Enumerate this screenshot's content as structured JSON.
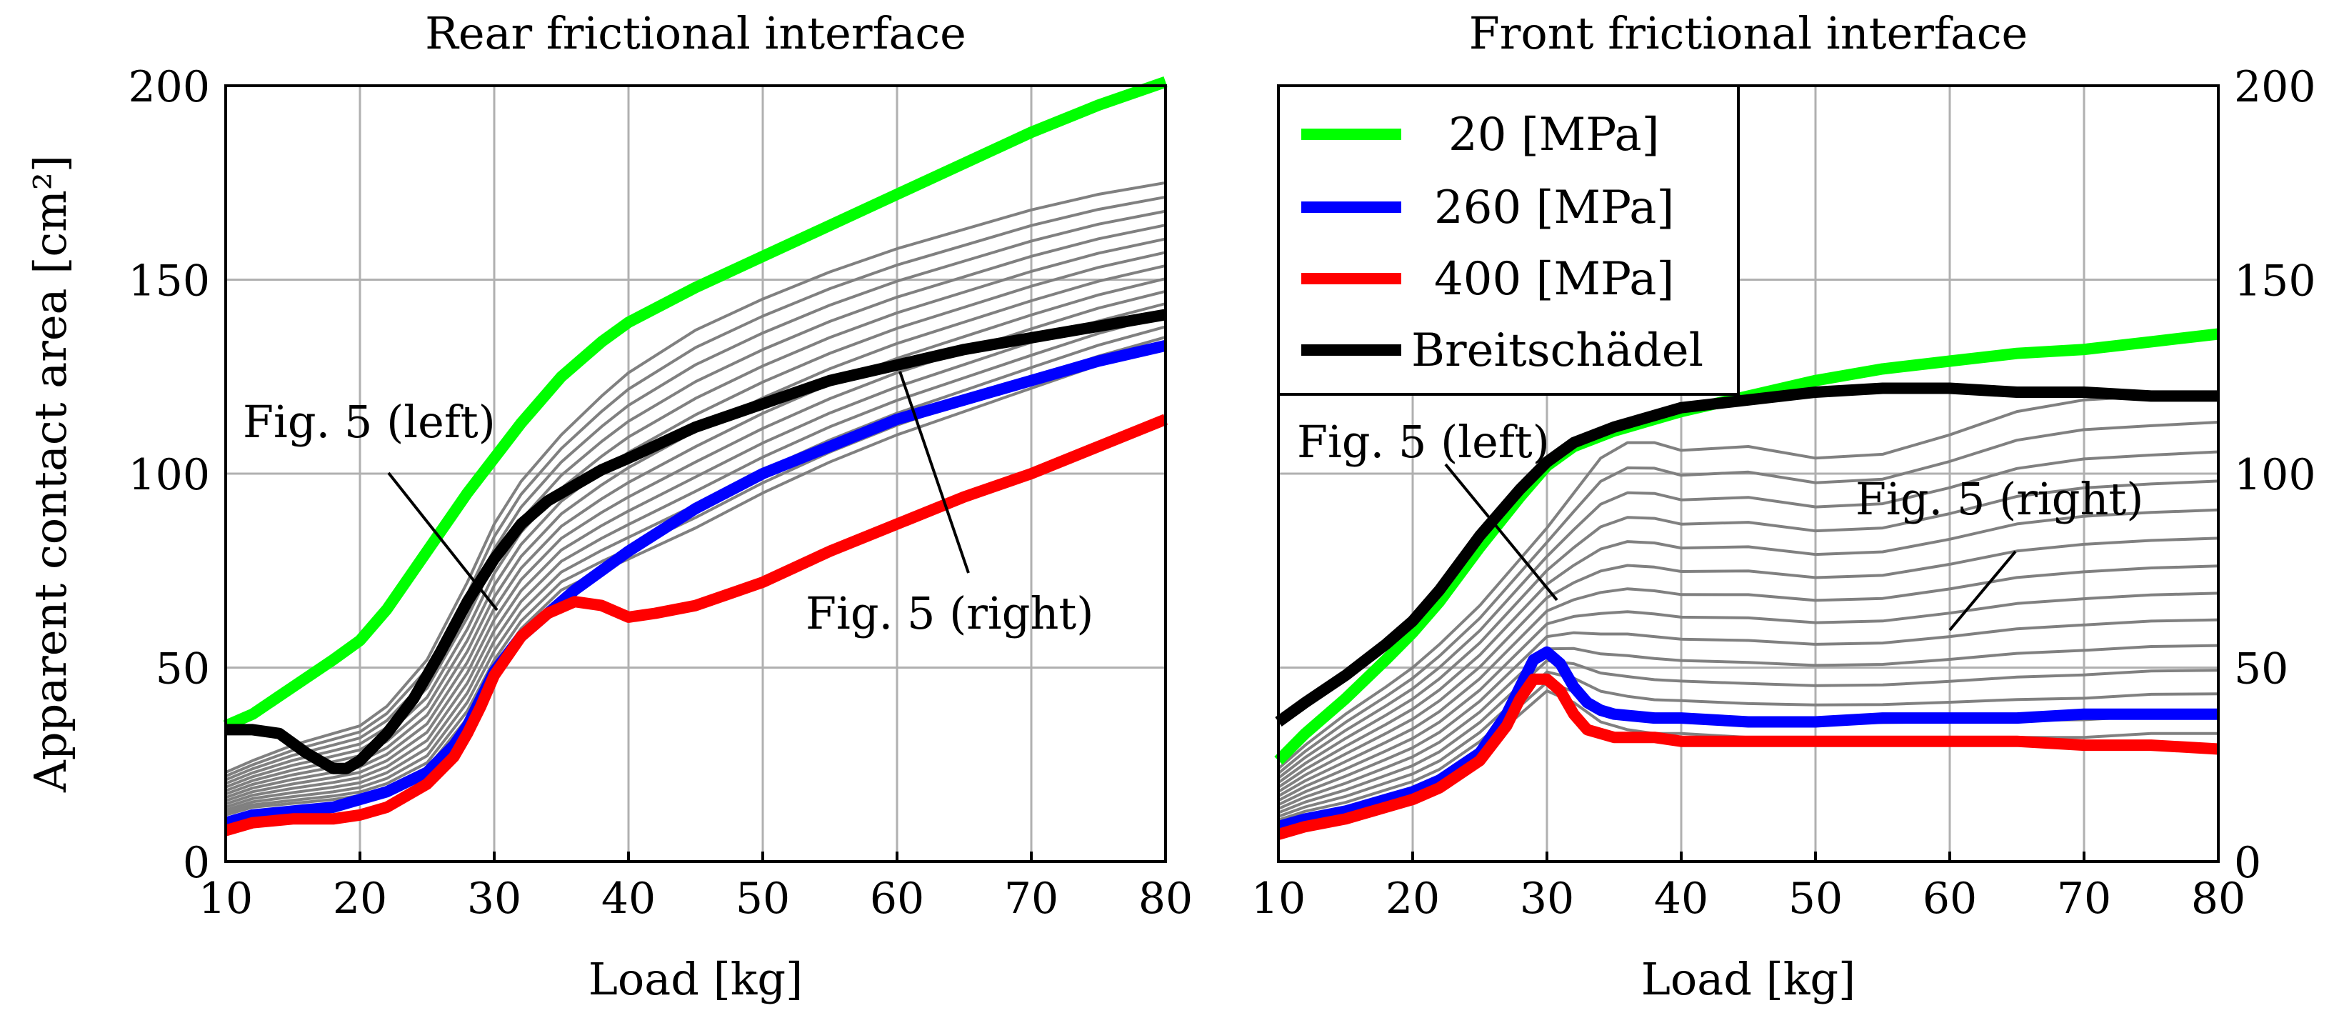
{
  "chart_data": [
    {
      "type": "line",
      "title": "Rear frictional interface",
      "xlabel": "Load [kg]",
      "ylabel": "Apparent contact area [cm²]",
      "xlim": [
        10,
        80
      ],
      "ylim": [
        0,
        200
      ],
      "x_ticks": [
        "10",
        "20",
        "30",
        "40",
        "50",
        "60",
        "70",
        "80"
      ],
      "y_ticks": [
        "0",
        "50",
        "100",
        "150",
        "200"
      ],
      "grid": true,
      "series": [
        {
          "name": "20 [MPa]",
          "color": "#00ff00",
          "width": "bold",
          "x": [
            10,
            12,
            15,
            18,
            20,
            22,
            25,
            28,
            30,
            32,
            35,
            38,
            40,
            45,
            50,
            55,
            60,
            65,
            70,
            75,
            80
          ],
          "y": [
            35,
            38,
            45,
            52,
            57,
            65,
            80,
            95,
            104,
            113,
            125,
            134,
            139,
            148,
            156,
            164,
            172,
            180,
            188,
            195,
            201
          ]
        },
        {
          "name": "260 [MPa]",
          "color": "#0000ff",
          "width": "bold",
          "x": [
            10,
            12,
            15,
            18,
            20,
            22,
            25,
            27,
            28,
            29,
            30,
            32,
            34,
            36,
            38,
            40,
            45,
            50,
            55,
            60,
            65,
            70,
            75,
            80
          ],
          "y": [
            10,
            12,
            13,
            14,
            16,
            18,
            23,
            30,
            35,
            42,
            49,
            58,
            64,
            70,
            75,
            80,
            91,
            100,
            107,
            114,
            119,
            124,
            129,
            133
          ]
        },
        {
          "name": "400 [MPa]",
          "color": "#ff0000",
          "width": "bold",
          "x": [
            10,
            12,
            15,
            18,
            20,
            22,
            25,
            27,
            28,
            29,
            30,
            32,
            34,
            36,
            38,
            40,
            42,
            45,
            50,
            55,
            60,
            65,
            70,
            75,
            80
          ],
          "y": [
            8,
            10,
            11,
            11,
            12,
            14,
            20,
            27,
            33,
            40,
            48,
            58,
            64,
            67,
            66,
            63,
            64,
            66,
            72,
            80,
            87,
            94,
            100,
            107,
            114
          ]
        },
        {
          "name": "Breitschädel",
          "color": "#000000",
          "width": "bold",
          "x": [
            10,
            12,
            14,
            16,
            18,
            19,
            20,
            22,
            24,
            26,
            28,
            30,
            32,
            34,
            36,
            38,
            40,
            45,
            50,
            55,
            60,
            65,
            70,
            75,
            80
          ],
          "y": [
            34,
            34,
            33,
            28,
            24,
            24,
            26,
            33,
            42,
            54,
            67,
            78,
            87,
            93,
            97,
            101,
            104,
            112,
            118,
            124,
            128,
            132,
            135,
            138,
            141
          ]
        },
        {
          "name": "grey family (Fig. 5)",
          "color": "#808080",
          "width": "thin",
          "x": [
            10,
            12,
            15,
            18,
            20,
            22,
            25,
            28,
            30,
            32,
            35,
            38,
            40,
            45,
            50,
            55,
            60,
            65,
            70,
            75,
            80
          ],
          "y_upper": [
            23,
            26,
            30,
            33,
            35,
            40,
            52,
            72,
            87,
            98,
            110,
            120,
            126,
            137,
            145,
            152,
            158,
            163,
            168,
            172,
            175
          ],
          "y_lower": [
            12,
            14,
            15,
            16,
            17,
            19,
            24,
            37,
            50,
            60,
            70,
            75,
            78,
            86,
            95,
            103,
            110,
            116,
            122,
            128,
            133
          ],
          "count": 14
        }
      ],
      "annotations": [
        {
          "text": "Fig. 5 (left)"
        },
        {
          "text": "Fig. 5 (right)"
        }
      ]
    },
    {
      "type": "line",
      "title": "Front frictional interface",
      "xlabel": "Load [kg]",
      "ylabel": "",
      "xlim": [
        10,
        80
      ],
      "ylim": [
        0,
        200
      ],
      "x_ticks": [
        "10",
        "20",
        "30",
        "40",
        "50",
        "60",
        "70",
        "80"
      ],
      "y_ticks": [
        "0",
        "50",
        "100",
        "150",
        "200"
      ],
      "grid": true,
      "legend": {
        "position": "top-left",
        "entries": [
          {
            "label": "20 [MPa]",
            "color": "#00ff00"
          },
          {
            "label": "260 [MPa]",
            "color": "#0000ff"
          },
          {
            "label": "400 [MPa]",
            "color": "#ff0000"
          },
          {
            "label": "Breitschädel",
            "color": "#000000"
          }
        ]
      },
      "series": [
        {
          "name": "20 [MPa]",
          "color": "#00ff00",
          "width": "bold",
          "x": [
            10,
            12,
            15,
            18,
            20,
            22,
            25,
            28,
            30,
            32,
            35,
            38,
            40,
            45,
            50,
            55,
            60,
            65,
            70,
            75,
            80
          ],
          "y": [
            26,
            33,
            42,
            52,
            59,
            67,
            81,
            94,
            102,
            107,
            111,
            114,
            116,
            120,
            124,
            127,
            129,
            131,
            132,
            134,
            136
          ]
        },
        {
          "name": "260 [MPa]",
          "color": "#0000ff",
          "width": "bold",
          "x": [
            10,
            12,
            15,
            18,
            20,
            22,
            25,
            27,
            28,
            29,
            30,
            31,
            32,
            33,
            34,
            35,
            38,
            40,
            45,
            50,
            55,
            60,
            65,
            70,
            75,
            80
          ],
          "y": [
            9,
            11,
            13,
            16,
            18,
            21,
            28,
            38,
            45,
            52,
            54,
            51,
            45,
            41,
            39,
            38,
            37,
            37,
            36,
            36,
            37,
            37,
            37,
            38,
            38,
            38
          ]
        },
        {
          "name": "400 [MPa]",
          "color": "#ff0000",
          "width": "bold",
          "x": [
            10,
            12,
            15,
            18,
            20,
            22,
            25,
            27,
            28,
            29,
            30,
            31,
            32,
            33,
            34,
            35,
            38,
            40,
            45,
            50,
            55,
            60,
            65,
            70,
            75,
            80
          ],
          "y": [
            7,
            9,
            11,
            14,
            16,
            19,
            26,
            35,
            42,
            47,
            47,
            44,
            38,
            34,
            33,
            32,
            32,
            31,
            31,
            31,
            31,
            31,
            31,
            30,
            30,
            29
          ]
        },
        {
          "name": "Breitschädel",
          "color": "#000000",
          "width": "bold",
          "x": [
            10,
            12,
            15,
            18,
            20,
            22,
            25,
            28,
            30,
            32,
            35,
            38,
            40,
            45,
            50,
            55,
            58,
            60,
            65,
            70,
            75,
            80
          ],
          "y": [
            36,
            41,
            48,
            56,
            62,
            70,
            84,
            96,
            103,
            108,
            112,
            115,
            117,
            119,
            121,
            122,
            122,
            122,
            121,
            121,
            120,
            120
          ]
        },
        {
          "name": "grey family (Fig. 5)",
          "color": "#808080",
          "width": "thin",
          "x": [
            10,
            12,
            15,
            18,
            20,
            22,
            25,
            28,
            30,
            32,
            34,
            36,
            38,
            40,
            45,
            50,
            55,
            60,
            65,
            70,
            75,
            80
          ],
          "y_upper": [
            24,
            30,
            38,
            45,
            50,
            56,
            66,
            78,
            86,
            95,
            104,
            108,
            108,
            106,
            107,
            104,
            105,
            110,
            116,
            119,
            120,
            121
          ],
          "y_lower": [
            10,
            12,
            14,
            17,
            19,
            22,
            29,
            38,
            44,
            41,
            36,
            34,
            33,
            33,
            32,
            32,
            32,
            32,
            32,
            32,
            33,
            33
          ],
          "count": 14
        }
      ],
      "annotations": [
        {
          "text": "Fig. 5 (left)"
        },
        {
          "text": "Fig. 5 (right)"
        }
      ]
    }
  ]
}
